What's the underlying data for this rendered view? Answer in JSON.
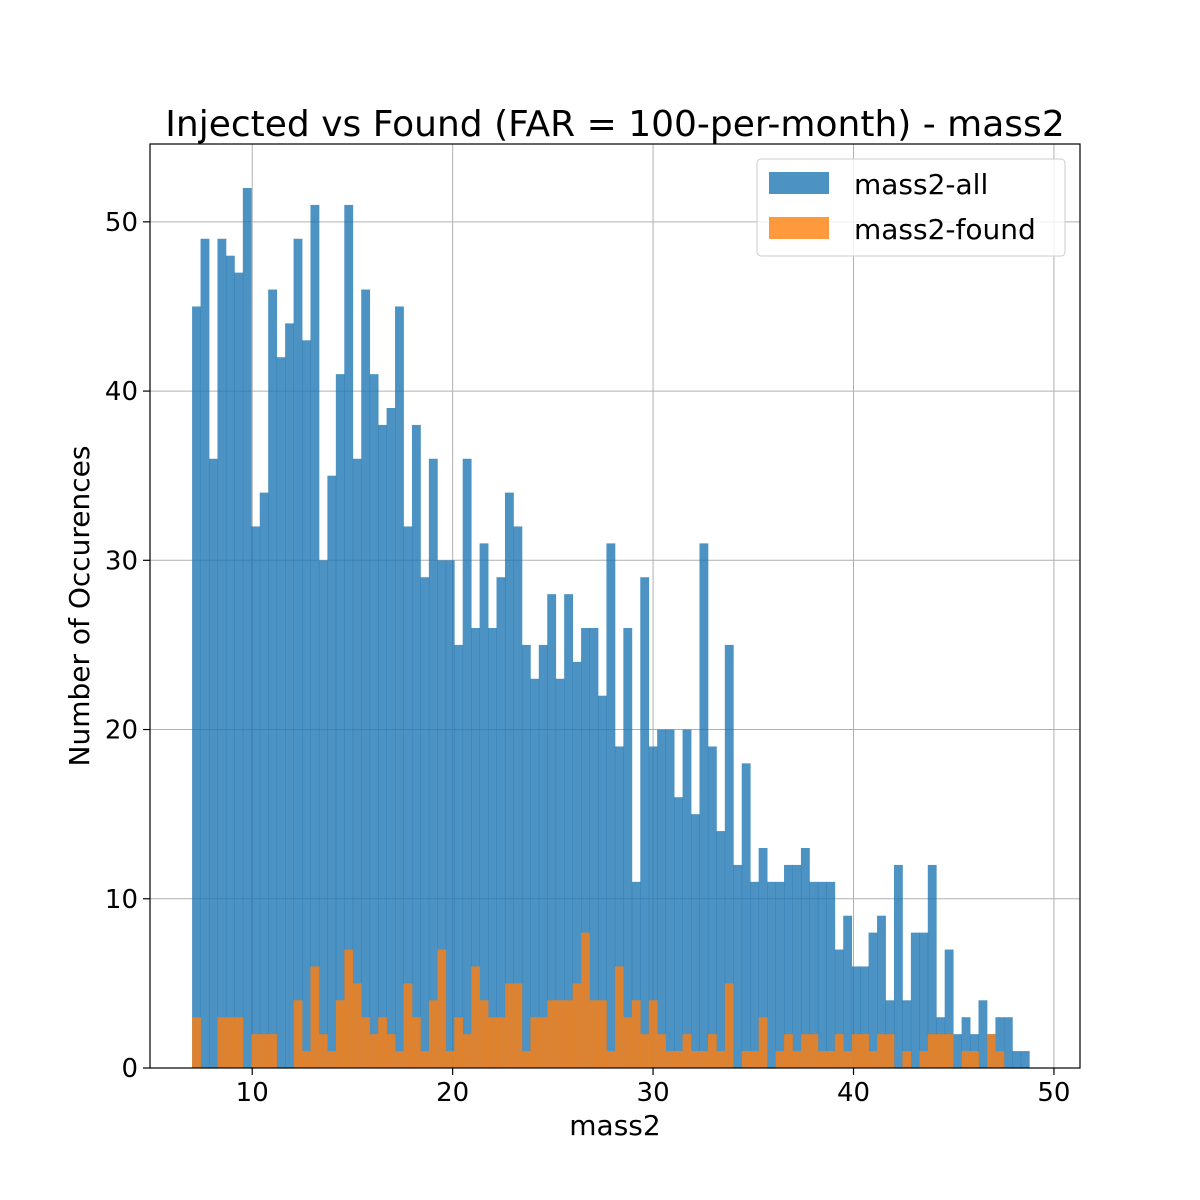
{
  "chart_data": {
    "type": "bar",
    "title": "Injected vs Found (FAR = 100-per-month) - mass2",
    "xlabel": "mass2",
    "ylabel": "Number of Occurences",
    "xlim": [
      4.9,
      51.3
    ],
    "ylim": [
      0,
      54.6
    ],
    "xticks": [
      10,
      20,
      30,
      40,
      50
    ],
    "yticks": [
      0,
      10,
      20,
      30,
      40,
      50
    ],
    "grid": true,
    "legend": "top-right",
    "bin_start": 7.0,
    "bin_width": 0.4219,
    "series": [
      {
        "name": "mass2-all",
        "color": "#1f77b4",
        "alpha": 0.8,
        "values": [
          45,
          49,
          36,
          49,
          48,
          47,
          52,
          32,
          34,
          46,
          42,
          44,
          49,
          43,
          51,
          30,
          35,
          41,
          51,
          36,
          46,
          41,
          38,
          39,
          45,
          32,
          38,
          29,
          36,
          30,
          30,
          25,
          36,
          26,
          31,
          26,
          29,
          34,
          32,
          25,
          23,
          25,
          28,
          23,
          28,
          24,
          26,
          26,
          22,
          31,
          19,
          26,
          11,
          29,
          19,
          20,
          20,
          16,
          20,
          15,
          31,
          19,
          14,
          25,
          12,
          18,
          11,
          13,
          11,
          11,
          12,
          12,
          13,
          11,
          11,
          11,
          7,
          9,
          6,
          6,
          8,
          9,
          4,
          12,
          4,
          8,
          8,
          12,
          3,
          7,
          2,
          3,
          2,
          4,
          2,
          3,
          3,
          1,
          1,
          0
        ]
      },
      {
        "name": "mass2-found",
        "color": "#ff7f0e",
        "alpha": 0.8,
        "values": [
          3,
          0,
          0,
          3,
          3,
          3,
          0,
          2,
          2,
          2,
          0,
          0,
          4,
          1,
          6,
          2,
          1,
          4,
          7,
          5,
          3,
          2,
          3,
          2,
          1,
          5,
          3,
          1,
          4,
          7,
          1,
          3,
          2,
          6,
          4,
          3,
          3,
          5,
          5,
          1,
          3,
          3,
          4,
          4,
          4,
          5,
          8,
          4,
          4,
          1,
          6,
          3,
          4,
          2,
          4,
          2,
          1,
          1,
          2,
          1,
          1,
          2,
          1,
          5,
          0,
          1,
          1,
          3,
          0,
          1,
          2,
          1,
          2,
          2,
          1,
          1,
          2,
          1,
          2,
          2,
          1,
          2,
          2,
          0,
          1,
          0,
          1,
          2,
          2,
          2,
          0,
          1,
          1,
          0,
          2,
          1,
          0,
          0,
          0,
          0
        ]
      }
    ]
  }
}
